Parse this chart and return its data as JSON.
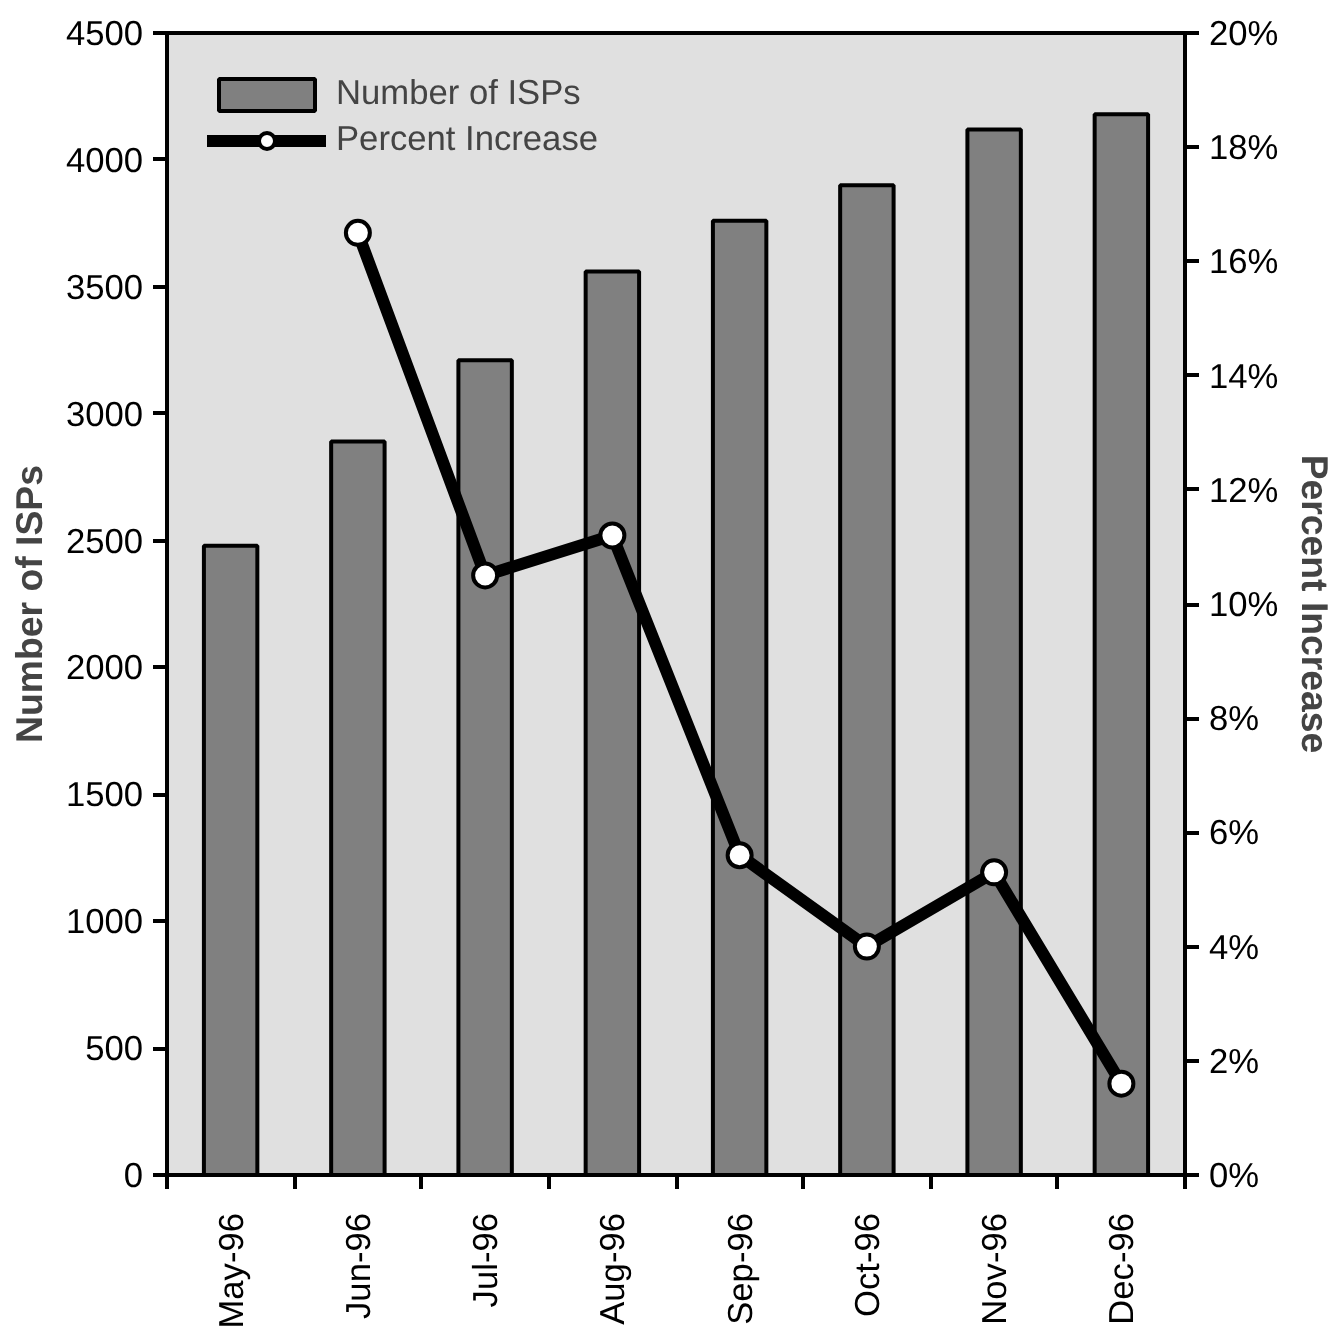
{
  "chart_data": {
    "type": "bar",
    "categories": [
      "May-96",
      "Jun-96",
      "Jul-96",
      "Aug-96",
      "Sep-96",
      "Oct-96",
      "Nov-96",
      "Dec-96"
    ],
    "ylabel": "Number of ISPs",
    "y2label": "Percent Increase",
    "series": [
      {
        "name": "Number of ISPs",
        "color": "#808080",
        "values": [
          2480,
          2890,
          3210,
          3560,
          3760,
          3900,
          4120,
          4180
        ]
      },
      {
        "name": "Percent Increase",
        "type": "line",
        "axis": "y2",
        "color": "#000000",
        "marker": "circle",
        "line_style": "solid",
        "values": [
          null,
          16.5,
          10.5,
          11.2,
          5.6,
          4.0,
          5.3,
          1.6
        ]
      }
    ],
    "ylim": [
      0,
      4500
    ],
    "yticks": [
      0,
      500,
      1000,
      1500,
      2000,
      2500,
      3000,
      3500,
      4000,
      4500
    ],
    "y2lim": [
      0,
      20
    ],
    "y2ticks": [
      {
        "value": 0,
        "label": "0%"
      },
      {
        "value": 2,
        "label": "2%"
      },
      {
        "value": 4,
        "label": "4%"
      },
      {
        "value": 6,
        "label": "6%"
      },
      {
        "value": 8,
        "label": "8%"
      },
      {
        "value": 10,
        "label": "10%"
      },
      {
        "value": 12,
        "label": "12%"
      },
      {
        "value": 14,
        "label": "14%"
      },
      {
        "value": 16,
        "label": "16%"
      },
      {
        "value": 18,
        "label": "18%"
      },
      {
        "value": 20,
        "label": "20%"
      }
    ],
    "grid": false,
    "legend": "top left"
  }
}
